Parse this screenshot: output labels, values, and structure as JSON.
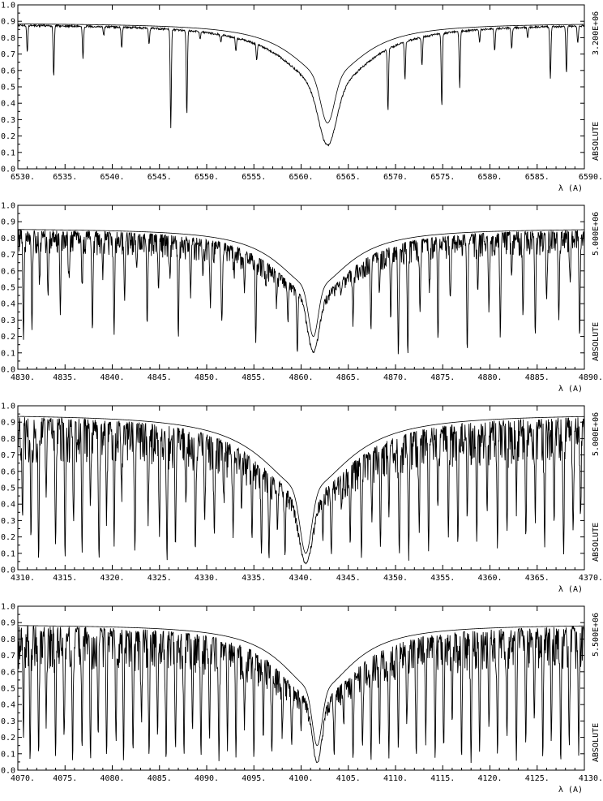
{
  "chart_data": [
    {
      "type": "line",
      "xlim": [
        6530,
        6590
      ],
      "ylim": [
        0.0,
        1.0
      ],
      "xlabel": "λ (A)",
      "right_label_top": "3.200E+06",
      "right_label_bottom": "ABSOLUTE",
      "x_ticks": [
        "6530.",
        "6535.",
        "6540.",
        "6545.",
        "6550.",
        "6555.",
        "6560.",
        "6565.",
        "6570.",
        "6575.",
        "6580.",
        "6585.",
        "6590."
      ],
      "y_ticks": [
        "0.0",
        "0.1",
        "0.2",
        "0.3",
        "0.4",
        "0.5",
        "0.6",
        "0.7",
        "0.8",
        "0.9",
        "1.0"
      ],
      "line_center": 6562.8,
      "series": [
        {
          "role": "observed",
          "continuum": 0.89,
          "core_depth": 0.15,
          "line_width": 0.9,
          "wing_width": 5.0,
          "lines": [
            [
              6531.0,
              0.72
            ],
            [
              6533.8,
              0.57
            ],
            [
              6536.9,
              0.68
            ],
            [
              6539.1,
              0.82
            ],
            [
              6541.0,
              0.74
            ],
            [
              6543.9,
              0.76
            ],
            [
              6546.2,
              0.26
            ],
            [
              6547.9,
              0.33
            ],
            [
              6549.3,
              0.8
            ],
            [
              6551.5,
              0.78
            ],
            [
              6553.1,
              0.72
            ],
            [
              6555.3,
              0.67
            ],
            [
              6557.4,
              0.78
            ],
            [
              6559.2,
              0.8
            ],
            [
              6566.3,
              0.77
            ],
            [
              6569.2,
              0.35
            ],
            [
              6571.0,
              0.55
            ],
            [
              6572.8,
              0.63
            ],
            [
              6574.9,
              0.38
            ],
            [
              6576.8,
              0.5
            ],
            [
              6578.9,
              0.78
            ],
            [
              6580.5,
              0.72
            ],
            [
              6582.3,
              0.74
            ],
            [
              6584.0,
              0.8
            ],
            [
              6586.4,
              0.55
            ],
            [
              6588.1,
              0.59
            ],
            [
              6589.3,
              0.77
            ]
          ]
        },
        {
          "role": "model",
          "continuum": 0.89,
          "core_depth": 0.28,
          "line_width": 0.7,
          "wing_width": 4.5,
          "lines": []
        }
      ]
    },
    {
      "type": "line",
      "xlim": [
        4830,
        4890
      ],
      "ylim": [
        0.0,
        1.0
      ],
      "xlabel": "λ (A)",
      "right_label_top": "5.000E+06",
      "right_label_bottom": "ABSOLUTE",
      "x_ticks": [
        "4830.",
        "4835.",
        "4840.",
        "4845.",
        "4850.",
        "4855.",
        "4860.",
        "4865.",
        "4870.",
        "4875.",
        "4880.",
        "4885.",
        "4890."
      ],
      "y_ticks": [
        "0.0",
        "0.1",
        "0.2",
        "0.3",
        "0.4",
        "0.5",
        "0.6",
        "0.7",
        "0.8",
        "0.9",
        "1.0"
      ],
      "line_center": 4861.3,
      "series": [
        {
          "role": "observed",
          "continuum": 0.86,
          "core_depth": 0.11,
          "line_width": 0.6,
          "wing_width": 5.0,
          "lines": [
            [
              4830.6,
              0.21
            ],
            [
              4831.5,
              0.27
            ],
            [
              4832.3,
              0.55
            ],
            [
              4833.2,
              0.45
            ],
            [
              4834.5,
              0.36
            ],
            [
              4835.4,
              0.6
            ],
            [
              4836.8,
              0.52
            ],
            [
              4837.9,
              0.25
            ],
            [
              4839.0,
              0.58
            ],
            [
              4840.2,
              0.23
            ],
            [
              4841.3,
              0.47
            ],
            [
              4842.6,
              0.62
            ],
            [
              4843.7,
              0.3
            ],
            [
              4844.9,
              0.5
            ],
            [
              4846.1,
              0.61
            ],
            [
              4847.0,
              0.22
            ],
            [
              4848.3,
              0.46
            ],
            [
              4849.6,
              0.57
            ],
            [
              4850.4,
              0.38
            ],
            [
              4851.6,
              0.3
            ],
            [
              4852.9,
              0.6
            ],
            [
              4854.0,
              0.48
            ],
            [
              4855.2,
              0.18
            ],
            [
              4856.3,
              0.56
            ],
            [
              4857.4,
              0.42
            ],
            [
              4858.6,
              0.3
            ],
            [
              4859.6,
              0.1
            ],
            [
              4864.2,
              0.48
            ],
            [
              4865.5,
              0.3
            ],
            [
              4866.3,
              0.57
            ],
            [
              4867.4,
              0.25
            ],
            [
              4868.3,
              0.48
            ],
            [
              4869.5,
              0.33
            ],
            [
              4870.3,
              0.08
            ],
            [
              4871.3,
              0.09
            ],
            [
              4872.6,
              0.35
            ],
            [
              4873.6,
              0.52
            ],
            [
              4874.5,
              0.21
            ],
            [
              4875.8,
              0.45
            ],
            [
              4877.6,
              0.11
            ],
            [
              4878.7,
              0.54
            ],
            [
              4879.9,
              0.38
            ],
            [
              4881.1,
              0.21
            ],
            [
              4882.3,
              0.57
            ],
            [
              4883.5,
              0.34
            ],
            [
              4884.8,
              0.21
            ],
            [
              4886.0,
              0.46
            ],
            [
              4887.3,
              0.3
            ],
            [
              4888.5,
              0.53
            ],
            [
              4889.5,
              0.2
            ]
          ]
        },
        {
          "role": "model",
          "continuum": 0.86,
          "core_depth": 0.2,
          "line_width": 0.5,
          "wing_width": 4.5,
          "lines": []
        }
      ]
    },
    {
      "type": "line",
      "xlim": [
        4310,
        4370
      ],
      "ylim": [
        0.0,
        1.0
      ],
      "xlabel": "λ (A)",
      "right_label_top": "5.000E+06",
      "right_label_bottom": "ABSOLUTE",
      "x_ticks": [
        "4310.",
        "4315.",
        "4320.",
        "4325.",
        "4330.",
        "4335.",
        "4340.",
        "4345.",
        "4350.",
        "4355.",
        "4360.",
        "4365.",
        "4370."
      ],
      "y_ticks": [
        "0.0",
        "0.1",
        "0.2",
        "0.3",
        "0.4",
        "0.5",
        "0.6",
        "0.7",
        "0.8",
        "0.9",
        "1.0"
      ],
      "line_center": 4340.5,
      "series": [
        {
          "role": "observed",
          "continuum": 0.95,
          "core_depth": 0.04,
          "line_width": 0.7,
          "wing_width": 6.0,
          "lines": [
            [
              4310.5,
              0.35
            ],
            [
              4311.4,
              0.22
            ],
            [
              4312.2,
              0.08
            ],
            [
              4313.0,
              0.45
            ],
            [
              4314.0,
              0.15
            ],
            [
              4315.0,
              0.06
            ],
            [
              4315.9,
              0.3
            ],
            [
              4316.8,
              0.12
            ],
            [
              4317.7,
              0.45
            ],
            [
              4318.6,
              0.05
            ],
            [
              4319.4,
              0.35
            ],
            [
              4320.2,
              0.15
            ],
            [
              4321.0,
              0.5
            ],
            [
              4322.4,
              0.1
            ],
            [
              4323.8,
              0.35
            ],
            [
              4325.0,
              0.2
            ],
            [
              4325.8,
              0.04
            ],
            [
              4326.7,
              0.15
            ],
            [
              4327.8,
              0.4
            ],
            [
              4328.8,
              0.12
            ],
            [
              4329.8,
              0.35
            ],
            [
              4330.8,
              0.25
            ],
            [
              4331.8,
              0.45
            ],
            [
              4332.8,
              0.2
            ],
            [
              4333.7,
              0.38
            ],
            [
              4334.8,
              0.18
            ],
            [
              4335.8,
              0.1
            ],
            [
              4336.6,
              0.06
            ],
            [
              4337.5,
              0.25
            ],
            [
              4338.3,
              0.08
            ],
            [
              4342.3,
              0.2
            ],
            [
              4343.2,
              0.1
            ],
            [
              4344.3,
              0.4
            ],
            [
              4345.2,
              0.18
            ],
            [
              4346.4,
              0.08
            ],
            [
              4347.5,
              0.3
            ],
            [
              4348.4,
              0.15
            ],
            [
              4349.3,
              0.4
            ],
            [
              4350.4,
              0.08
            ],
            [
              4351.4,
              0.06
            ],
            [
              4352.5,
              0.3
            ],
            [
              4353.5,
              0.12
            ],
            [
              4354.5,
              0.4
            ],
            [
              4355.6,
              0.25
            ],
            [
              4356.6,
              0.15
            ],
            [
              4357.6,
              0.4
            ],
            [
              4358.6,
              0.2
            ],
            [
              4359.7,
              0.35
            ],
            [
              4360.8,
              0.15
            ],
            [
              4361.8,
              0.25
            ],
            [
              4362.8,
              0.45
            ],
            [
              4363.8,
              0.2
            ],
            [
              4364.8,
              0.35
            ],
            [
              4365.8,
              0.15
            ],
            [
              4366.8,
              0.3
            ],
            [
              4367.8,
              0.1
            ],
            [
              4368.8,
              0.25
            ],
            [
              4369.6,
              0.35
            ]
          ]
        },
        {
          "role": "model",
          "continuum": 0.95,
          "core_depth": 0.1,
          "line_width": 0.6,
          "wing_width": 5.5,
          "lines": []
        }
      ]
    },
    {
      "type": "line",
      "xlim": [
        4070,
        4130
      ],
      "ylim": [
        0.0,
        1.0
      ],
      "xlabel": "λ (A)",
      "right_label_top": "5.500E+06",
      "right_label_bottom": "ABSOLUTE",
      "x_ticks": [
        "4070.",
        "4075.",
        "4080.",
        "4085.",
        "4090.",
        "4095.",
        "4100.",
        "4105.",
        "4110.",
        "4115.",
        "4120.",
        "4125.",
        "4130."
      ],
      "y_ticks": [
        "0.0",
        "0.1",
        "0.2",
        "0.3",
        "0.4",
        "0.5",
        "0.6",
        "0.7",
        "0.8",
        "0.9",
        "1.0"
      ],
      "line_center": 4101.7,
      "series": [
        {
          "role": "observed",
          "continuum": 0.89,
          "core_depth": 0.05,
          "line_width": 0.5,
          "wing_width": 5.0,
          "lines": [
            [
              4070.6,
              0.2
            ],
            [
              4071.3,
              0.05
            ],
            [
              4072.2,
              0.1
            ],
            [
              4073.0,
              0.3
            ],
            [
              4074.0,
              0.08
            ],
            [
              4074.9,
              0.2
            ],
            [
              4075.8,
              0.06
            ],
            [
              4076.8,
              0.15
            ],
            [
              4077.7,
              0.05
            ],
            [
              4078.5,
              0.25
            ],
            [
              4079.4,
              0.08
            ],
            [
              4080.4,
              0.18
            ],
            [
              4081.2,
              0.06
            ],
            [
              4082.2,
              0.12
            ],
            [
              4083.1,
              0.3
            ],
            [
              4083.9,
              0.08
            ],
            [
              4084.8,
              0.2
            ],
            [
              4085.7,
              0.06
            ],
            [
              4086.7,
              0.15
            ],
            [
              4087.6,
              0.08
            ],
            [
              4088.5,
              0.25
            ],
            [
              4089.4,
              0.1
            ],
            [
              4090.3,
              0.2
            ],
            [
              4091.3,
              0.06
            ],
            [
              4092.2,
              0.15
            ],
            [
              4093.1,
              0.08
            ],
            [
              4094.0,
              0.3
            ],
            [
              4095.0,
              0.08
            ],
            [
              4096.0,
              0.2
            ],
            [
              4096.9,
              0.1
            ],
            [
              4098.0,
              0.25
            ],
            [
              4099.0,
              0.15
            ],
            [
              4100.0,
              0.3
            ],
            [
              4103.5,
              0.1
            ],
            [
              4104.5,
              0.3
            ],
            [
              4105.5,
              0.08
            ],
            [
              4106.5,
              0.15
            ],
            [
              4107.4,
              0.06
            ],
            [
              4108.3,
              0.2
            ],
            [
              4109.3,
              0.08
            ],
            [
              4110.3,
              0.15
            ],
            [
              4111.2,
              0.3
            ],
            [
              4112.2,
              0.08
            ],
            [
              4113.2,
              0.2
            ],
            [
              4114.2,
              0.06
            ],
            [
              4115.1,
              0.15
            ],
            [
              4116.0,
              0.3
            ],
            [
              4117.0,
              0.08
            ],
            [
              4118.0,
              0.05
            ],
            [
              4118.9,
              0.15
            ],
            [
              4119.9,
              0.25
            ],
            [
              4120.8,
              0.08
            ],
            [
              4121.8,
              0.2
            ],
            [
              4122.8,
              0.06
            ],
            [
              4123.8,
              0.15
            ],
            [
              4124.7,
              0.3
            ],
            [
              4125.6,
              0.08
            ],
            [
              4126.5,
              0.2
            ],
            [
              4127.5,
              0.05
            ],
            [
              4128.4,
              0.15
            ],
            [
              4129.4,
              0.1
            ]
          ]
        },
        {
          "role": "model",
          "continuum": 0.89,
          "core_depth": 0.15,
          "line_width": 0.5,
          "wing_width": 4.5,
          "lines": []
        }
      ]
    }
  ]
}
